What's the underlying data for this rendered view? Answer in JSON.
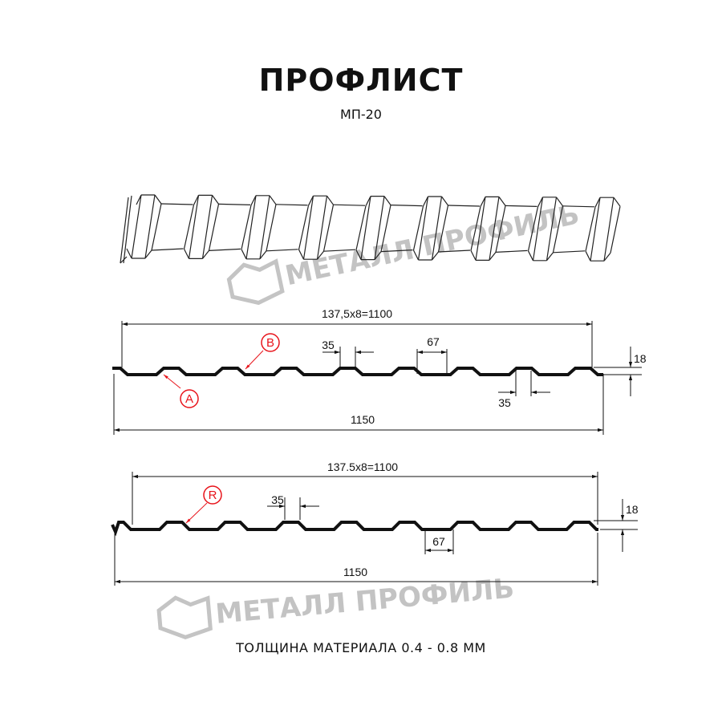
{
  "header": {
    "title": "ПРОФЛИСТ",
    "subtitle": "МП-20"
  },
  "watermark": {
    "text": "МЕТАЛЛ ПРОФИЛЬ",
    "color": "#b9b9b9"
  },
  "profile_a": {
    "pitch_label": "137,5x8=1100",
    "total_label": "1150",
    "top_width_label": "35",
    "bottom_width_label": "67",
    "bottom_gap_label": "35",
    "height_label": "18",
    "markers": [
      "A",
      "B"
    ]
  },
  "profile_b": {
    "pitch_label": "137.5x8=1100",
    "total_label": "1150",
    "top_width_label": "35",
    "bottom_width_label": "67",
    "height_label": "18",
    "markers": [
      "R"
    ]
  },
  "footer": {
    "thickness": "ТОЛЩИНА МАТЕРИАЛА 0.4 - 0.8 ММ"
  },
  "colors": {
    "profile": "#111111",
    "marker": "#e8141b",
    "watermark": "#b9b9b9"
  }
}
